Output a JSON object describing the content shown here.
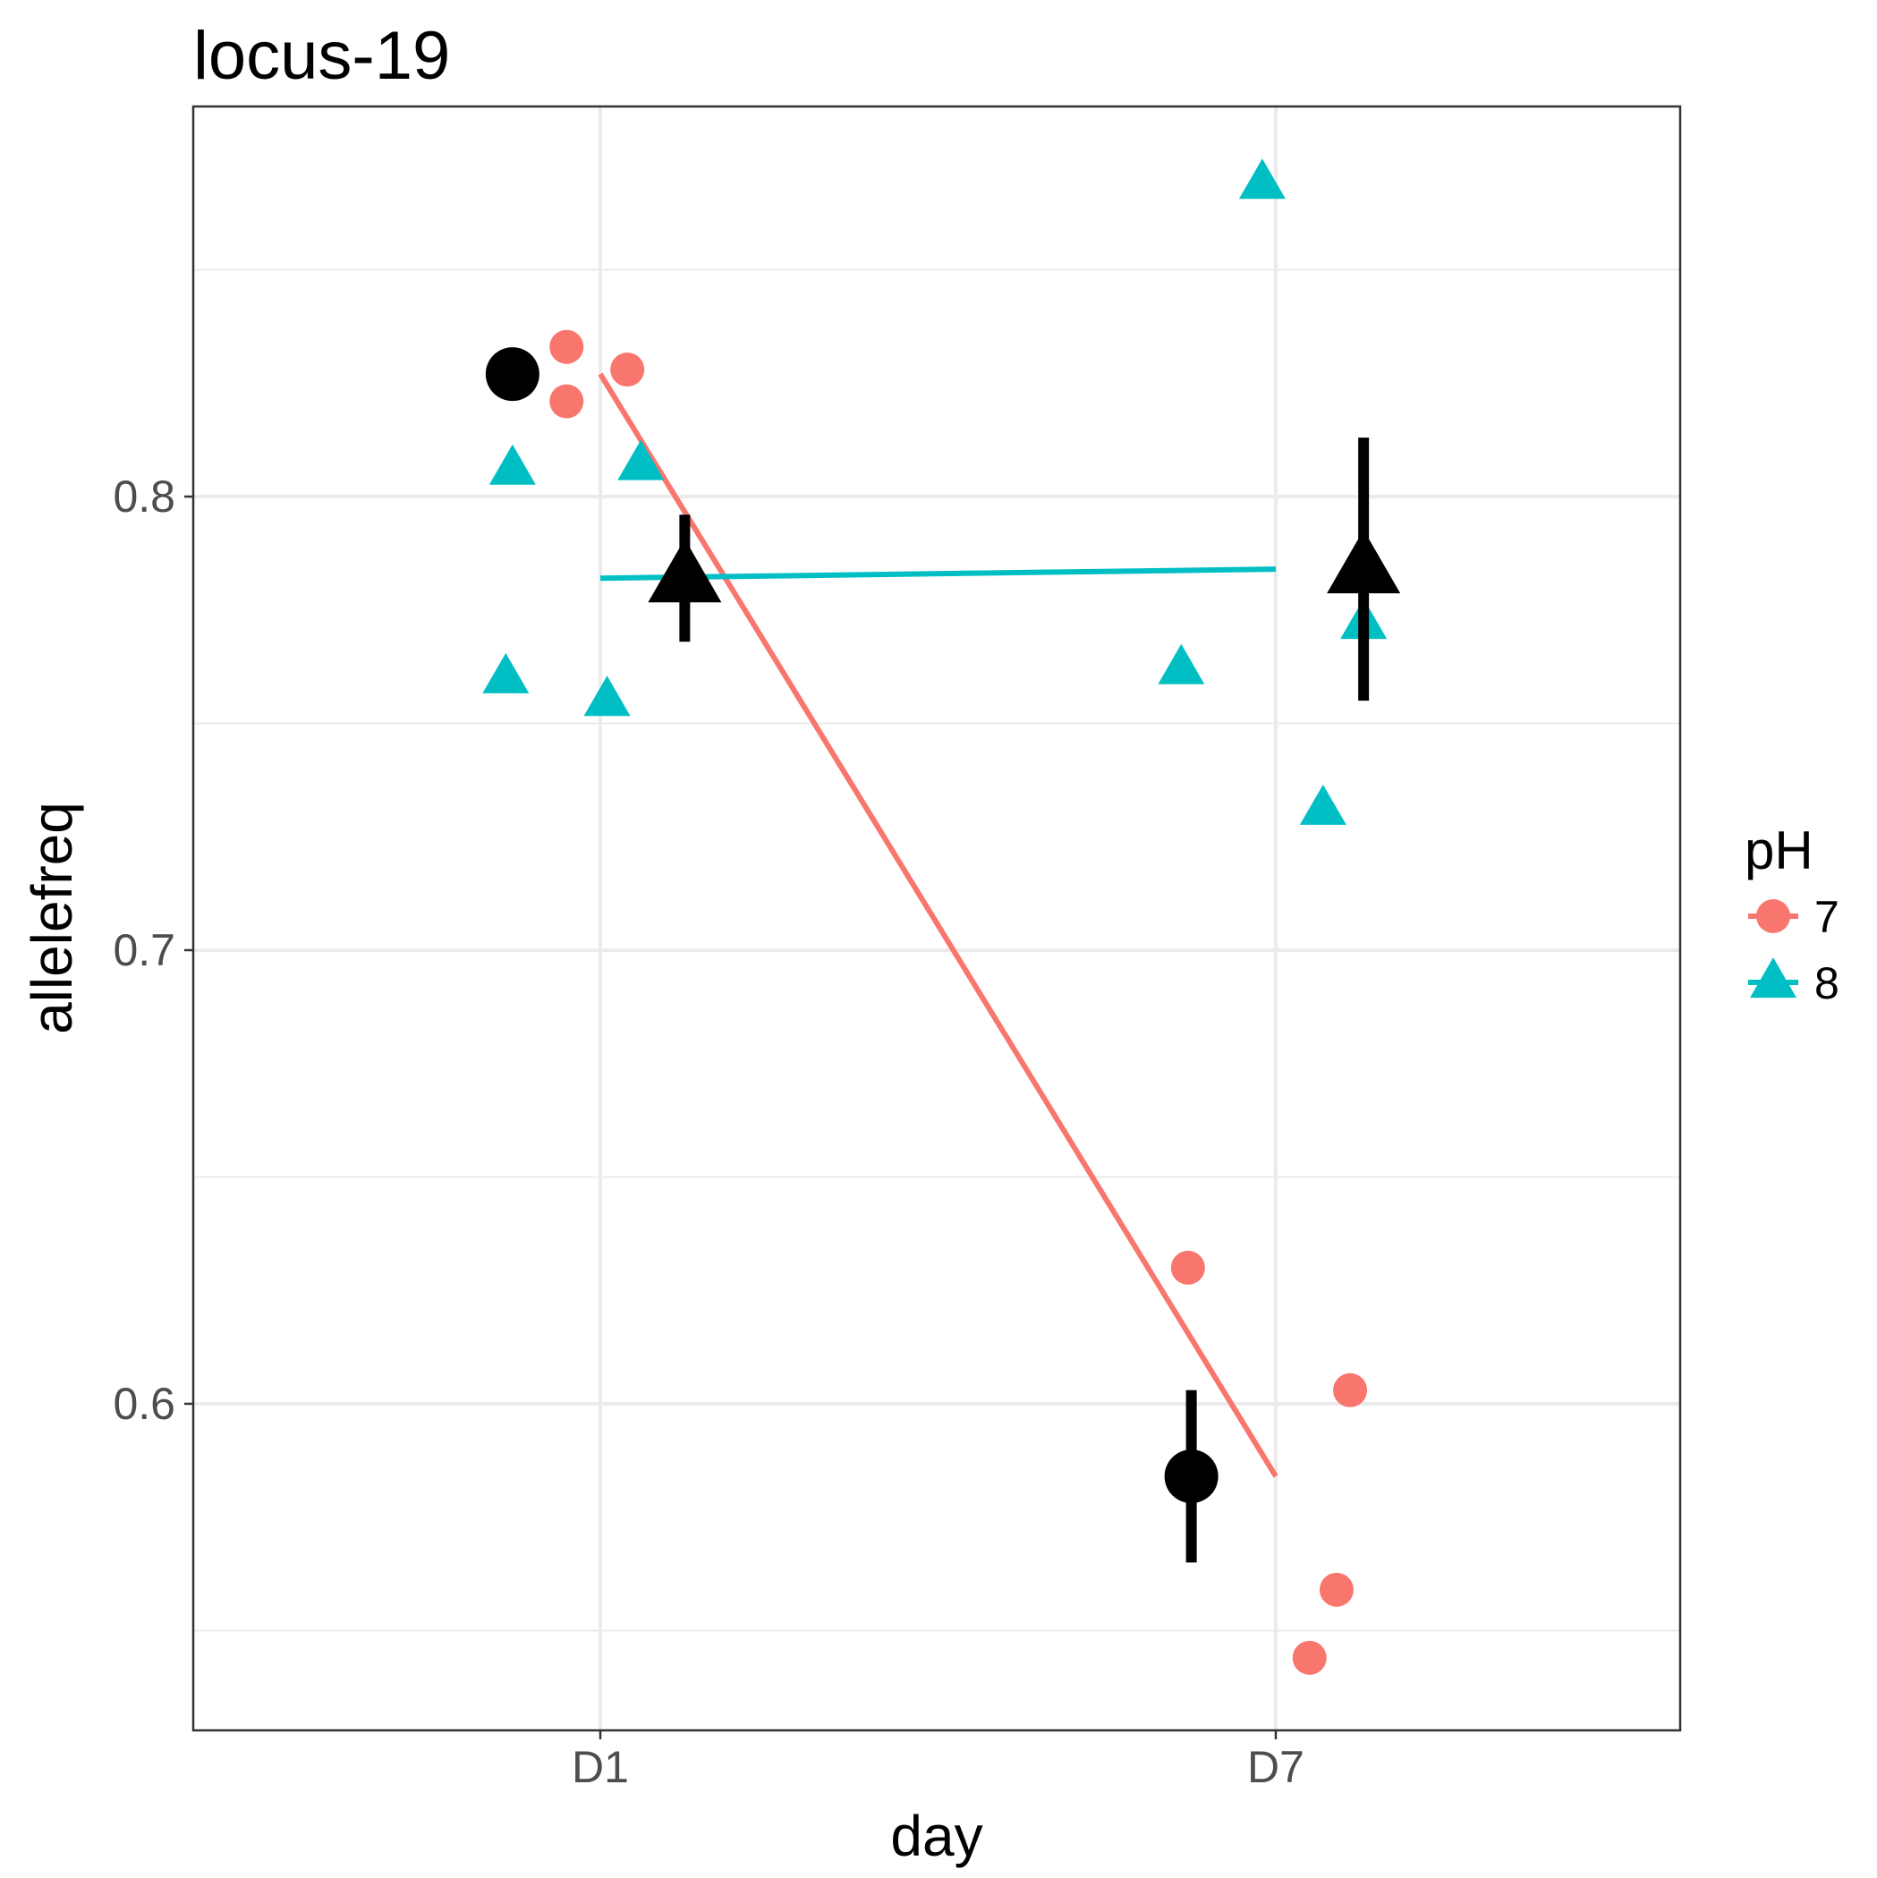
{
  "chart_data": {
    "type": "scatter",
    "title": "locus-19",
    "xlabel": "day",
    "ylabel": "allelefreq",
    "categories": [
      "D1",
      "D7"
    ],
    "ylim": [
      0.528,
      0.886
    ],
    "y_ticks": [
      0.6,
      0.7,
      0.8
    ],
    "y_tick_labels": [
      "0.6",
      "0.7",
      "0.8"
    ],
    "grid": true,
    "legend": {
      "title": "pH",
      "position": "right",
      "entries": [
        {
          "label": "7",
          "color": "#F8766D",
          "shape": "circle"
        },
        {
          "label": "8",
          "color": "#00BFC4",
          "shape": "triangle"
        }
      ]
    },
    "series": [
      {
        "name": "7",
        "color": "#F8766D",
        "shape": "circle",
        "points": [
          {
            "x": "D1",
            "jitter": -0.05,
            "y": 0.833
          },
          {
            "x": "D1",
            "jitter": -0.05,
            "y": 0.821
          },
          {
            "x": "D1",
            "jitter": 0.04,
            "y": 0.828
          },
          {
            "x": "D7",
            "jitter": -0.13,
            "y": 0.63
          },
          {
            "x": "D7",
            "jitter": 0.11,
            "y": 0.603
          },
          {
            "x": "D7",
            "jitter": 0.09,
            "y": 0.559
          },
          {
            "x": "D7",
            "jitter": 0.05,
            "y": 0.544
          }
        ],
        "line": [
          {
            "x": "D1",
            "y": 0.827
          },
          {
            "x": "D7",
            "y": 0.584
          }
        ],
        "mean": [
          {
            "x": "D1",
            "jitter": -0.13,
            "y": 0.827,
            "lower": null,
            "upper": null
          },
          {
            "x": "D7",
            "jitter": -0.125,
            "y": 0.584,
            "lower": 0.565,
            "upper": 0.603
          }
        ]
      },
      {
        "name": "8",
        "color": "#00BFC4",
        "shape": "triangle",
        "points": [
          {
            "x": "D1",
            "jitter": -0.13,
            "y": 0.806
          },
          {
            "x": "D1",
            "jitter": 0.06,
            "y": 0.807
          },
          {
            "x": "D1",
            "jitter": -0.14,
            "y": 0.76
          },
          {
            "x": "D1",
            "jitter": 0.01,
            "y": 0.755
          },
          {
            "x": "D7",
            "jitter": -0.02,
            "y": 0.869
          },
          {
            "x": "D7",
            "jitter": -0.14,
            "y": 0.762
          },
          {
            "x": "D7",
            "jitter": 0.13,
            "y": 0.772
          },
          {
            "x": "D7",
            "jitter": 0.07,
            "y": 0.731
          }
        ],
        "line": [
          {
            "x": "D1",
            "y": 0.782
          },
          {
            "x": "D7",
            "y": 0.784
          }
        ],
        "mean": [
          {
            "x": "D1",
            "jitter": 0.125,
            "y": 0.782,
            "lower": 0.768,
            "upper": 0.796
          },
          {
            "x": "D7",
            "jitter": 0.13,
            "y": 0.784,
            "lower": 0.755,
            "upper": 0.813
          }
        ]
      }
    ]
  }
}
